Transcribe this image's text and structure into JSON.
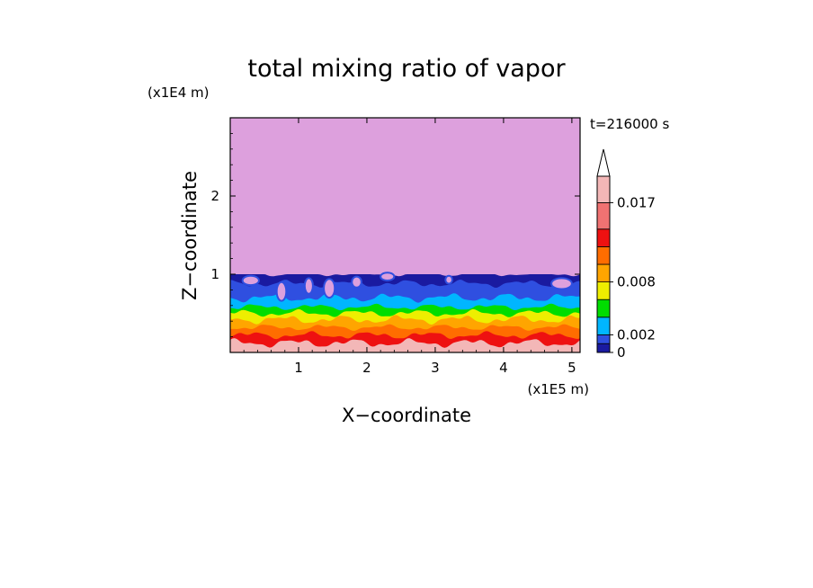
{
  "chart_data": {
    "type": "heatmap",
    "title": "total mixing ratio of vapor",
    "time_label": "t=216000 s",
    "xlabel": "X−coordinate",
    "ylabel": "Z−coordinate",
    "x_unit": "(x1E5 m)",
    "y_unit": "(x1E4 m)",
    "xlim": [
      0,
      5.12
    ],
    "ylim": [
      0,
      3.0
    ],
    "x_ticks": [
      1,
      2,
      3,
      4,
      5
    ],
    "x_tick_labels": [
      "1",
      "2",
      "3",
      "4",
      "5"
    ],
    "y_ticks": [
      1,
      2
    ],
    "y_tick_labels": [
      "1",
      "2"
    ],
    "colorbar": {
      "levels": [
        0,
        0.001,
        0.002,
        0.004,
        0.006,
        0.008,
        0.01,
        0.012,
        0.014,
        0.017,
        0.02
      ],
      "colors": [
        "#1a1aa0",
        "#2f4fe0",
        "#00b6ff",
        "#00dd00",
        "#eeee00",
        "#ffa500",
        "#ff6d00",
        "#ee1111",
        "#f07272",
        "#f3b7b7"
      ],
      "labels": [
        "0",
        "0.002",
        "0.008",
        "0.017"
      ],
      "label_levels": [
        0,
        0.002,
        0.008,
        0.017
      ],
      "extend": "max"
    },
    "background_value_color": "#dda0dd",
    "layers": [
      {
        "level": "0.017+",
        "color": "#f3b7b7",
        "z_top": 0.12
      },
      {
        "level": "0.014",
        "color": "#ee1111",
        "z_top": 0.22
      },
      {
        "level": "0.012",
        "color": "#ff6d00",
        "z_top": 0.32
      },
      {
        "level": "0.010",
        "color": "#ffa500",
        "z_top": 0.42
      },
      {
        "level": "0.008",
        "color": "#eeee00",
        "z_top": 0.5
      },
      {
        "level": "0.006",
        "color": "#00dd00",
        "z_top": 0.58
      },
      {
        "level": "0.004",
        "color": "#00b6ff",
        "z_top": 0.7
      },
      {
        "level": "0.002",
        "color": "#2f4fe0",
        "z_top": 0.88
      },
      {
        "level": "0.001",
        "color": "#1a1aa0",
        "z_top": 1.0
      }
    ]
  }
}
